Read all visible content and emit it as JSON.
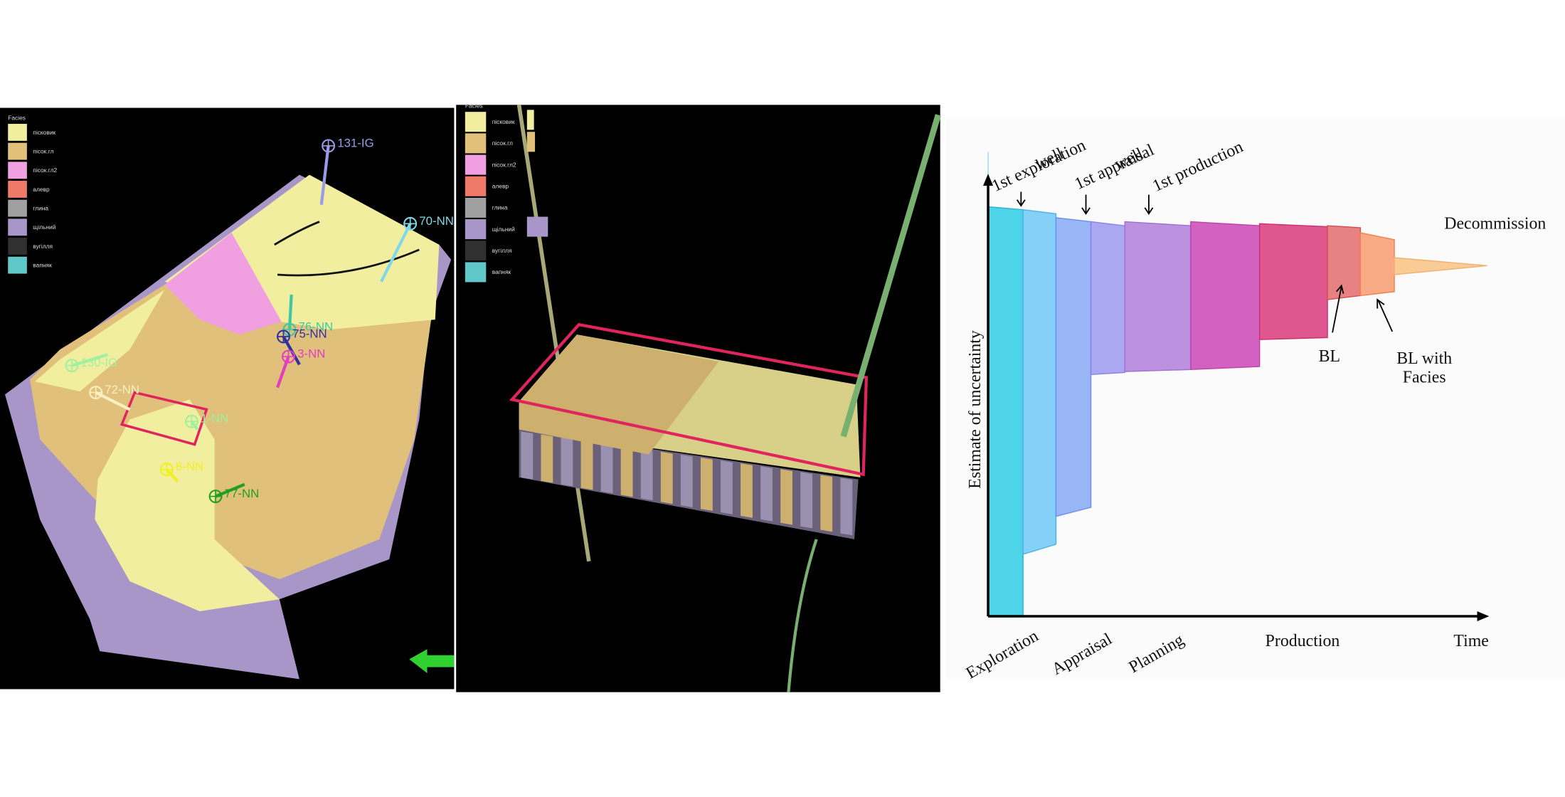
{
  "facies_legend": {
    "title": "Facies",
    "items": [
      {
        "label": "пісковик",
        "color": "#f2eea0"
      },
      {
        "label": "пісок.гл",
        "color": "#e0c07a"
      },
      {
        "label": "пісок.гл2",
        "color": "#f0a0e0"
      },
      {
        "label": "алевр",
        "color": "#f07a6a"
      },
      {
        "label": "глина",
        "color": "#a0a0a0"
      },
      {
        "label": "щільний",
        "color": "#a896c8"
      },
      {
        "label": "вугілля",
        "color": "#303030"
      },
      {
        "label": "вапняк",
        "color": "#60c8c8"
      }
    ]
  },
  "map_wells": [
    {
      "label": "131-IG",
      "color": "#9a9ae8"
    },
    {
      "label": "70-NN",
      "color": "#80d8e8"
    },
    {
      "label": "76-NN",
      "color": "#40c8a0"
    },
    {
      "label": "75-NN",
      "color": "#3030a0"
    },
    {
      "label": "3-NN",
      "color": "#e040c0"
    },
    {
      "label": "130-IG",
      "color": "#a0f0a0"
    },
    {
      "label": "72-NN",
      "color": "#f8f0c0"
    },
    {
      "label": "1-NN",
      "color": "#a0f0a0"
    },
    {
      "label": "8-NN",
      "color": "#f0f020"
    },
    {
      "label": "77-NN",
      "color": "#20a020"
    }
  ],
  "diagram": {
    "milestones": [
      [
        "1st exploration",
        "well"
      ],
      [
        "1st appraisal",
        "well"
      ],
      [
        "1st production"
      ]
    ],
    "y_axis_label": "Estimate of uncertainty",
    "x_axis_label": "Time",
    "phases": [
      "Exploration",
      "Appraisal",
      "Planning",
      "Production"
    ],
    "end_label": "Decommission",
    "annotations": [
      [
        "BL"
      ],
      [
        "BL with",
        "Facies"
      ]
    ]
  }
}
